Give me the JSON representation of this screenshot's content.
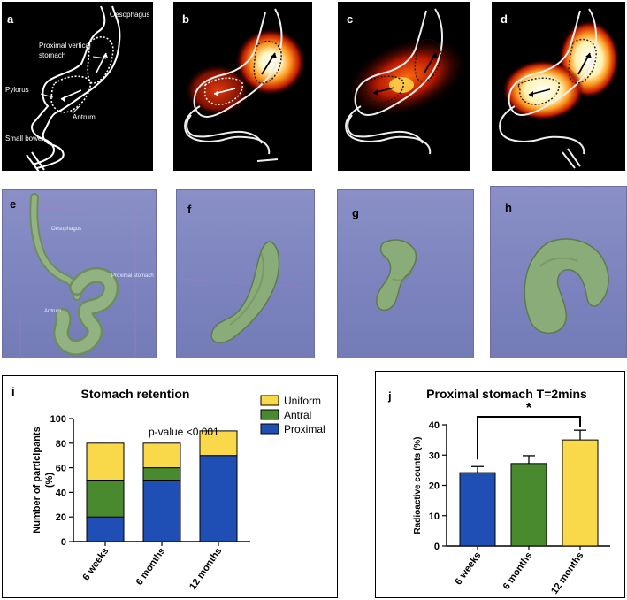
{
  "panels": {
    "a": {
      "label": "a",
      "annotations": {
        "oesophagus": "Oesophagus",
        "proximal_line1": "Proximal vertical",
        "proximal_line2": "stomach",
        "pylorus": "Pylorus",
        "antrum": "Antrum",
        "small_bowel": "Small bowel"
      }
    },
    "b": {
      "label": "b"
    },
    "c": {
      "label": "c"
    },
    "d": {
      "label": "d"
    },
    "e": {
      "label": "e",
      "annotations": {
        "oesophagus": "Oesophagus",
        "proximal": "Proximal stomach",
        "antrum": "Antrum"
      }
    },
    "f": {
      "label": "f"
    },
    "g": {
      "label": "g"
    },
    "h": {
      "label": "h"
    }
  },
  "colors": {
    "proximal": "#1f4fb5",
    "antral": "#4a8a2f",
    "uniform": "#f9d84a",
    "model_green": "#8aac78",
    "bg_blue": "#7f86c0"
  },
  "chart_data": [
    {
      "panel_label": "i",
      "type": "bar",
      "stacked": true,
      "title": "Stomach retention",
      "ylabel": "Number of participants (%)",
      "ylabel_line1": "Number of participants",
      "ylabel_line2": "(%)",
      "xlabel": "",
      "ylim": [
        0,
        100
      ],
      "yticks": [
        0,
        20,
        40,
        60,
        80,
        100
      ],
      "categories": [
        "6 weeks",
        "6 months",
        "12 months"
      ],
      "series": [
        {
          "name": "Proximal",
          "values": [
            20,
            50,
            70
          ],
          "color": "#1f4fb5"
        },
        {
          "name": "Antral",
          "values": [
            30,
            10,
            0
          ],
          "color": "#4a8a2f"
        },
        {
          "name": "Uniform",
          "values": [
            30,
            20,
            20
          ],
          "color": "#f9d84a"
        }
      ],
      "legend_order": [
        "Uniform",
        "Antral",
        "Proximal"
      ],
      "legend_position": "top-right",
      "annotation": "p-value <0.001"
    },
    {
      "panel_label": "j",
      "type": "bar",
      "title": "Proximal stomach T=2mins",
      "ylabel": "Radioactive counts (%)",
      "xlabel": "",
      "ylim": [
        0,
        40
      ],
      "yticks": [
        0,
        10,
        20,
        30,
        40
      ],
      "categories": [
        "6 weeks",
        "6 months",
        "12 months"
      ],
      "values": [
        24.2,
        27.2,
        35.0
      ],
      "errors": [
        2.0,
        2.6,
        3.2
      ],
      "colors": [
        "#1f4fb5",
        "#4a8a2f",
        "#f9d84a"
      ],
      "significance": "*"
    }
  ]
}
